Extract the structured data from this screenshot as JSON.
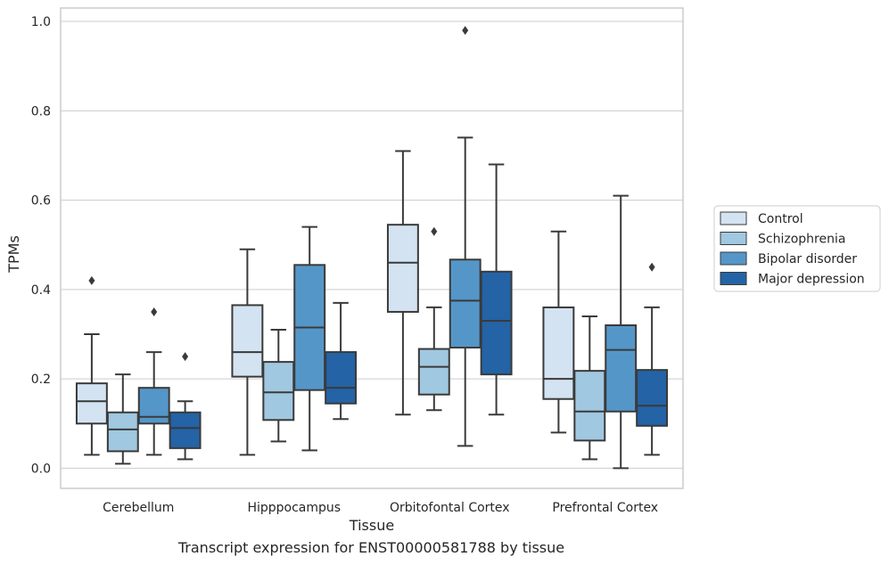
{
  "chart_data": {
    "type": "box",
    "title": "",
    "xlabel": "Tissue",
    "ylabel": "TPMs",
    "ylim": [
      -0.045,
      1.03
    ],
    "yticks": [
      "0.0",
      "0.2",
      "0.4",
      "0.6",
      "0.8",
      "1.0"
    ],
    "grid": true,
    "legend_position": "right",
    "categories": [
      "Cerebellum",
      "Hipppocampus",
      "Orbitofontal Cortex",
      "Prefrontal Cortex"
    ],
    "series": [
      {
        "name": "Control",
        "color": "#d3e3f2",
        "boxes": [
          {
            "min": 0.03,
            "q1": 0.1,
            "median": 0.15,
            "q3": 0.19,
            "max": 0.3,
            "outliers": [
              0.42
            ]
          },
          {
            "min": 0.03,
            "q1": 0.205,
            "median": 0.26,
            "q3": 0.365,
            "max": 0.49,
            "outliers": []
          },
          {
            "min": 0.12,
            "q1": 0.35,
            "median": 0.46,
            "q3": 0.545,
            "max": 0.71,
            "outliers": []
          },
          {
            "min": 0.08,
            "q1": 0.155,
            "median": 0.2,
            "q3": 0.36,
            "max": 0.53,
            "outliers": []
          }
        ]
      },
      {
        "name": "Schizophrenia",
        "color": "#a0c8e0",
        "boxes": [
          {
            "min": 0.01,
            "q1": 0.038,
            "median": 0.087,
            "q3": 0.125,
            "max": 0.21,
            "outliers": []
          },
          {
            "min": 0.06,
            "q1": 0.108,
            "median": 0.17,
            "q3": 0.238,
            "max": 0.31,
            "outliers": []
          },
          {
            "min": 0.13,
            "q1": 0.165,
            "median": 0.227,
            "q3": 0.267,
            "max": 0.36,
            "outliers": [
              0.53
            ]
          },
          {
            "min": 0.02,
            "q1": 0.062,
            "median": 0.127,
            "q3": 0.218,
            "max": 0.34,
            "outliers": []
          }
        ]
      },
      {
        "name": "Bipolar disorder",
        "color": "#5596c8",
        "boxes": [
          {
            "min": 0.03,
            "q1": 0.1,
            "median": 0.115,
            "q3": 0.18,
            "max": 0.26,
            "outliers": [
              0.35
            ]
          },
          {
            "min": 0.04,
            "q1": 0.175,
            "median": 0.315,
            "q3": 0.455,
            "max": 0.54,
            "outliers": []
          },
          {
            "min": 0.05,
            "q1": 0.27,
            "median": 0.375,
            "q3": 0.467,
            "max": 0.74,
            "outliers": [
              0.98
            ]
          },
          {
            "min": 0.0,
            "q1": 0.127,
            "median": 0.265,
            "q3": 0.32,
            "max": 0.61,
            "outliers": []
          }
        ]
      },
      {
        "name": "Major depression",
        "color": "#2363a6",
        "boxes": [
          {
            "min": 0.02,
            "q1": 0.045,
            "median": 0.09,
            "q3": 0.125,
            "max": 0.15,
            "outliers": [
              0.25
            ]
          },
          {
            "min": 0.11,
            "q1": 0.145,
            "median": 0.18,
            "q3": 0.26,
            "max": 0.37,
            "outliers": []
          },
          {
            "min": 0.12,
            "q1": 0.21,
            "median": 0.33,
            "q3": 0.44,
            "max": 0.68,
            "outliers": []
          },
          {
            "min": 0.03,
            "q1": 0.095,
            "median": 0.14,
            "q3": 0.22,
            "max": 0.36,
            "outliers": [
              0.45
            ]
          }
        ]
      }
    ]
  },
  "caption": "Transcript expression for ENST00000581788 by tissue"
}
